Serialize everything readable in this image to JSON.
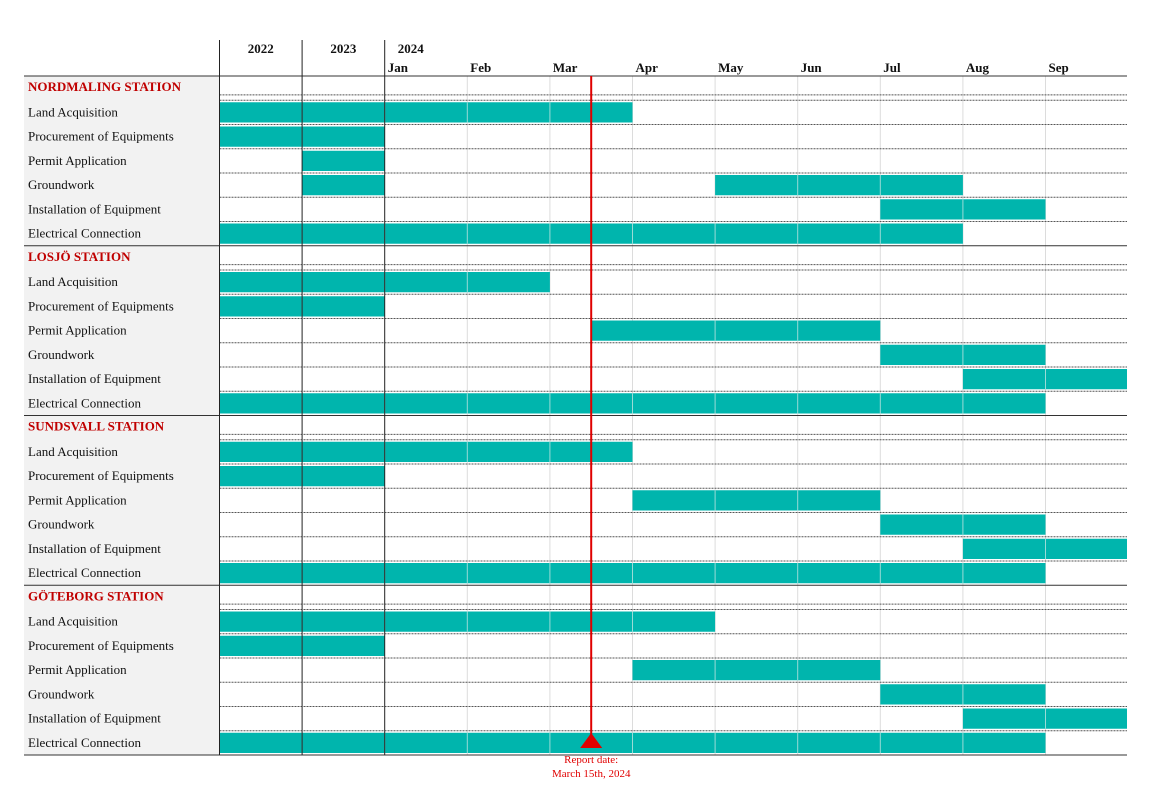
{
  "colors": {
    "bar": "#00b5ad",
    "section": "#c00000",
    "marker": "#e00000",
    "label_bg": "#f2f2f2"
  },
  "chart_data": {
    "type": "gantt",
    "columns": [
      {
        "year": "2022",
        "month": ""
      },
      {
        "year": "2023",
        "month": ""
      },
      {
        "year": "2024",
        "month": "Jan"
      },
      {
        "year": "",
        "month": "Feb"
      },
      {
        "year": "",
        "month": "Mar"
      },
      {
        "year": "",
        "month": "Apr"
      },
      {
        "year": "",
        "month": "May"
      },
      {
        "year": "",
        "month": "Jun"
      },
      {
        "year": "",
        "month": "Jul"
      },
      {
        "year": "",
        "month": "Aug"
      },
      {
        "year": "",
        "month": "Sep"
      }
    ],
    "report_date": {
      "label_line1": "Report date:",
      "label_line2": "March 15th, 2024",
      "position_col": 4.5
    },
    "sections": [
      {
        "name": "NORDMALING STATION",
        "tasks": [
          {
            "name": "Land Acquisition",
            "start": 0,
            "end": 5
          },
          {
            "name": "Procurement of Equipments",
            "start": 0,
            "end": 2
          },
          {
            "name": "Permit Application",
            "start": 1,
            "end": 2
          },
          {
            "name": "Groundwork",
            "segments": [
              [
                1,
                2
              ],
              [
                6,
                9
              ]
            ]
          },
          {
            "name": "Installation of Equipment",
            "start": 8,
            "end": 10
          },
          {
            "name": "Electrical Connection",
            "start": 0,
            "end": 9
          }
        ]
      },
      {
        "name": "LOSJÖ STATION",
        "tasks": [
          {
            "name": "Land Acquisition",
            "start": 0,
            "end": 4
          },
          {
            "name": "Procurement of Equipments",
            "start": 0,
            "end": 2
          },
          {
            "name": "Permit Application",
            "start": 4.5,
            "end": 8
          },
          {
            "name": "Groundwork",
            "start": 8,
            "end": 10
          },
          {
            "name": "Installation of Equipment",
            "start": 9,
            "end": 11
          },
          {
            "name": "Electrical Connection",
            "start": 0,
            "end": 10
          }
        ]
      },
      {
        "name": "SUNDSVALL STATION",
        "tasks": [
          {
            "name": "Land Acquisition",
            "start": 0,
            "end": 5
          },
          {
            "name": "Procurement of Equipments",
            "start": 0,
            "end": 2
          },
          {
            "name": "Permit Application",
            "start": 5,
            "end": 8
          },
          {
            "name": "Groundwork",
            "start": 8,
            "end": 10
          },
          {
            "name": "Installation of Equipment",
            "start": 9,
            "end": 11
          },
          {
            "name": "Electrical Connection",
            "start": 0,
            "end": 10
          }
        ]
      },
      {
        "name": "GÖTEBORG STATION",
        "tasks": [
          {
            "name": "Land Acquisition",
            "start": 0,
            "end": 6
          },
          {
            "name": "Procurement of Equipments",
            "start": 0,
            "end": 2
          },
          {
            "name": "Permit Application",
            "start": 5,
            "end": 8
          },
          {
            "name": "Groundwork",
            "start": 8,
            "end": 10
          },
          {
            "name": "Installation of Equipment",
            "start": 9,
            "end": 11
          },
          {
            "name": "Electrical Connection",
            "start": 0,
            "end": 10
          }
        ]
      }
    ]
  }
}
